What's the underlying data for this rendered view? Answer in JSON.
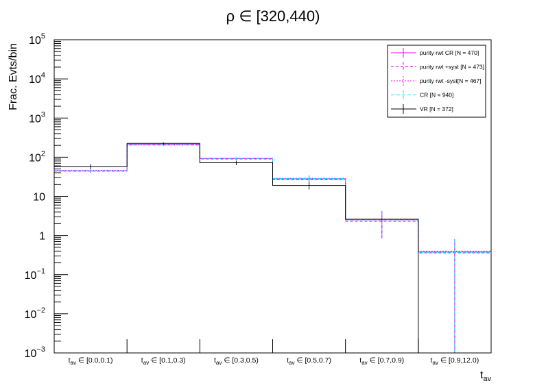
{
  "chart_data": {
    "type": "histogram",
    "title_base": "ρ ∈ [320,440)",
    "ylabel": "Frac. Evts/bin",
    "xlabel_main": "t",
    "xlabel_sub": "av",
    "y_scale": "log",
    "ylim": [
      0.001,
      100000
    ],
    "y_ticks": [
      {
        "value": 100000,
        "base": "10",
        "exp": "5"
      },
      {
        "value": 10000,
        "base": "10",
        "exp": "4"
      },
      {
        "value": 1000,
        "base": "10",
        "exp": "3"
      },
      {
        "value": 100,
        "base": "10",
        "exp": "2"
      },
      {
        "value": 10,
        "base": "10",
        "exp": ""
      },
      {
        "value": 1,
        "base": "1",
        "exp": ""
      },
      {
        "value": 0.1,
        "base": "10",
        "exp": "−1"
      },
      {
        "value": 0.01,
        "base": "10",
        "exp": "−2"
      },
      {
        "value": 0.001,
        "base": "10",
        "exp": "−3"
      }
    ],
    "categories": [
      {
        "t": "t",
        "sub": "av",
        "range": "∈ [0.0,0.1)"
      },
      {
        "t": "t",
        "sub": "av",
        "range": "∈ [0.1,0.3)"
      },
      {
        "t": "t",
        "sub": "av",
        "range": "∈ [0.3,0.5)"
      },
      {
        "t": "t",
        "sub": "av",
        "range": "∈ [0.5,0.7)"
      },
      {
        "t": "t",
        "sub": "av",
        "range": "∈ [0.7,0.9)"
      },
      {
        "t": "t",
        "sub": "av",
        "range": "∈ [0.9,12.0)"
      }
    ],
    "legend_position": "top-right",
    "series": [
      {
        "name": "purity rwt CR [N = 470]",
        "color": "#ff00ff",
        "dash": "",
        "values": [
          45,
          210,
          92,
          28,
          2.5,
          0.38
        ],
        "err_lo": [
          40,
          195,
          85,
          23,
          0.85,
          0.001
        ],
        "err_hi": [
          51,
          225,
          99,
          34,
          4.2,
          0.8
        ]
      },
      {
        "name": "purity rwt +syst [N = 473]",
        "color": "#cc00cc",
        "dash": "4,3",
        "values": [
          44,
          205,
          90,
          27,
          2.3,
          0.36
        ],
        "err_lo": [
          40,
          195,
          85,
          23,
          0.85,
          0.001
        ],
        "err_hi": [
          51,
          225,
          99,
          34,
          4.2,
          0.8
        ]
      },
      {
        "name": "purity rwt -syst[N = 467]",
        "color": "#ff00ff",
        "dash": "2,2",
        "values": [
          46,
          215,
          94,
          29,
          2.6,
          0.4
        ],
        "err_lo": [
          40,
          195,
          85,
          23,
          0.85,
          0.001
        ],
        "err_hi": [
          51,
          225,
          99,
          34,
          4.2,
          0.8
        ]
      },
      {
        "name": "CR [N = 940]",
        "color": "#00e0ff",
        "dash": "5,3",
        "values": [
          45,
          208,
          93,
          28.5,
          2.5,
          0.37
        ],
        "err_lo": [
          40,
          195,
          85,
          23,
          0.85,
          0.001
        ],
        "err_hi": [
          51,
          225,
          99,
          34,
          4.2,
          0.8
        ]
      },
      {
        "name": "VR [N = 372]",
        "color": "#000000",
        "dash": "",
        "values": [
          58,
          225,
          72,
          19,
          2.6,
          0.001
        ],
        "err_lo": [
          50,
          210,
          63,
          15,
          2.5,
          0.001
        ],
        "err_hi": [
          66,
          240,
          81,
          23,
          2.7,
          0.001
        ]
      }
    ]
  }
}
